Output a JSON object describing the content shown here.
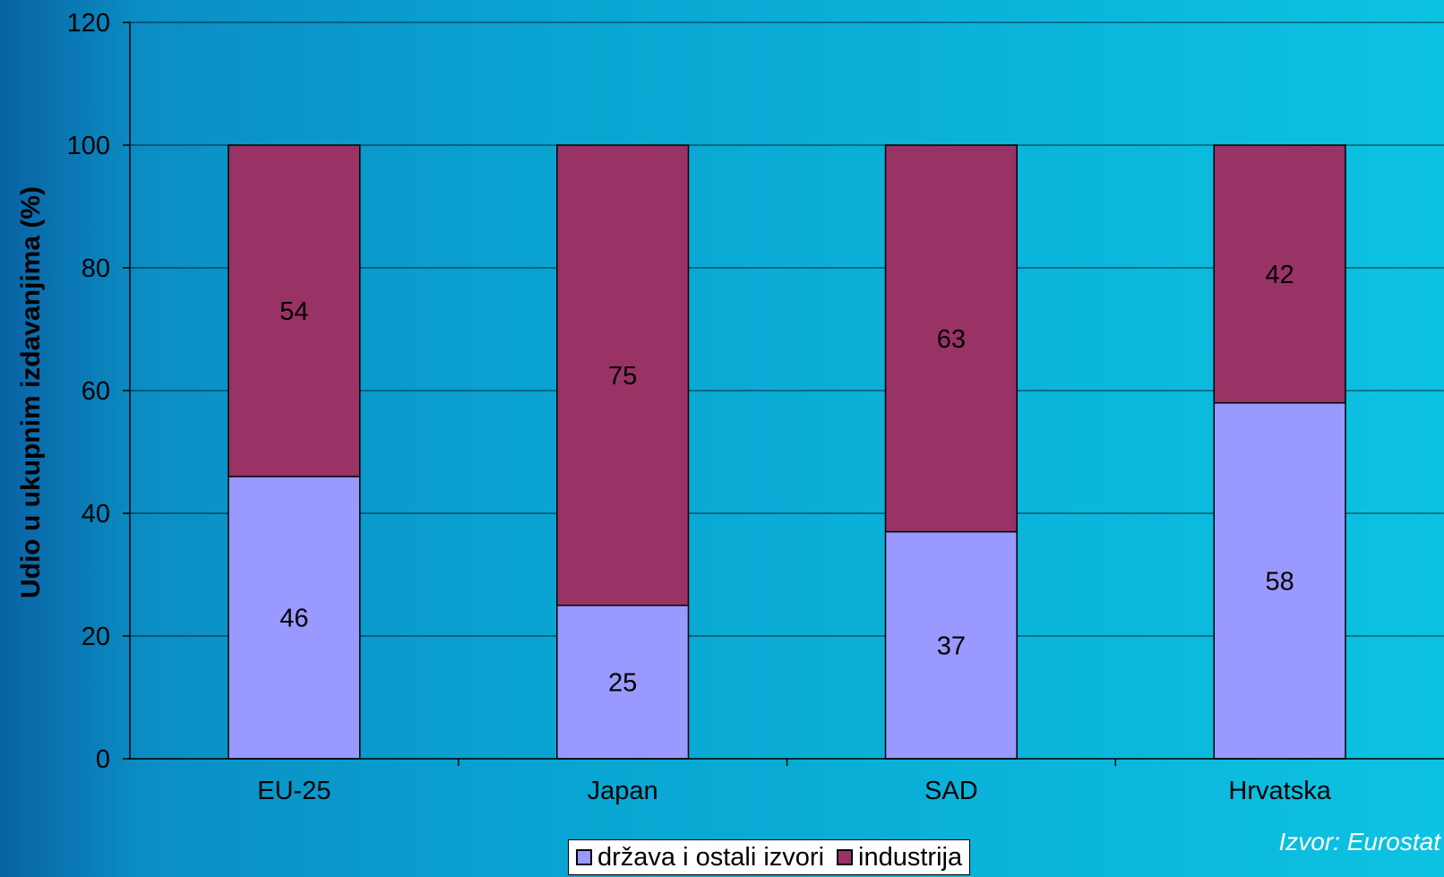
{
  "chart_data": {
    "type": "bar",
    "stacked": true,
    "categories": [
      "EU-25",
      "Japan",
      "SAD",
      "Hrvatska"
    ],
    "series": [
      {
        "name": "država i ostali izvori",
        "values": [
          46,
          25,
          37,
          58
        ],
        "color": "#9999ff"
      },
      {
        "name": "industrija",
        "values": [
          54,
          75,
          63,
          42
        ],
        "color": "#993366"
      }
    ],
    "title": "",
    "xlabel": "",
    "ylabel": "Udio u ukupnim izdavanjima (%)",
    "ylim": [
      0,
      120
    ],
    "yticks": [
      0,
      20,
      40,
      60,
      80,
      100,
      120
    ],
    "grid": true,
    "legend_position": "bottom",
    "source_note": "Izvor: Eurostat"
  }
}
